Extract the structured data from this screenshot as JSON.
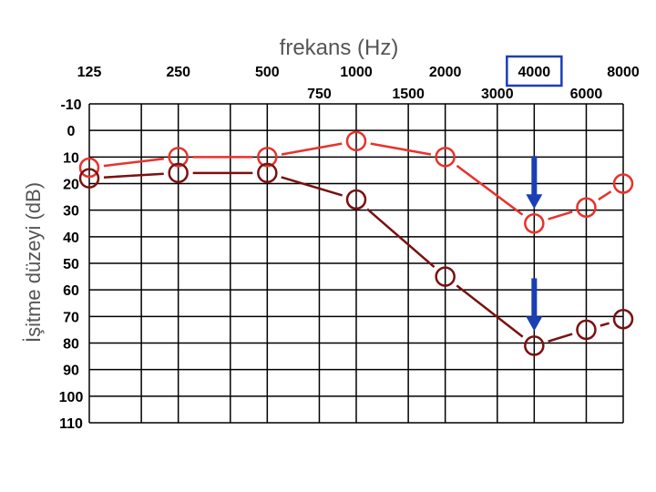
{
  "chart_data": {
    "type": "line",
    "title": "frekans (Hz)",
    "xlabel": "frekans (Hz)",
    "ylabel": "İşitme düzeyi (dB)",
    "x_ticks_top": [
      "125",
      "250",
      "500",
      "1000",
      "2000",
      "4000",
      "8000"
    ],
    "x_ticks_mid": [
      "750",
      "1500",
      "3000",
      "6000"
    ],
    "y_ticks": [
      "-10",
      "0",
      "10",
      "20",
      "30",
      "40",
      "50",
      "60",
      "70",
      "80",
      "90",
      "100",
      "110"
    ],
    "ylim": [
      -10,
      110
    ],
    "y_inverted": true,
    "highlighted_tick": "4000",
    "x": [
      125,
      250,
      500,
      1000,
      2000,
      4000,
      6000,
      8000
    ],
    "series": [
      {
        "color": "#e8322c",
        "values": [
          14,
          10,
          10,
          4,
          10,
          35,
          29,
          20
        ]
      },
      {
        "color": "#7a1010",
        "values": [
          18,
          16,
          16,
          26,
          55,
          81,
          75,
          71
        ]
      }
    ],
    "arrow_color": "#1a3fb5",
    "highlight_box_color": "#1a3fb5"
  }
}
